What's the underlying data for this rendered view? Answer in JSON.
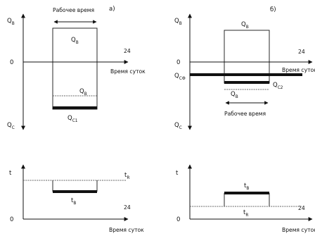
{
  "panel_a": {
    "tag": "а)",
    "qb_axis": "Q",
    "qb_axis_sub": "В",
    "qc_axis": "Q",
    "qc_axis_sub": "С",
    "zero": "0",
    "hour24": "24",
    "time_axis": "Время суток",
    "work_time": "Рабочее время",
    "qb_box": "Q",
    "qb_box_sub": "В",
    "qb_line": "Q",
    "qb_line_sub": "В",
    "qc1": "Q",
    "qc1_sub": "С1"
  },
  "panel_b": {
    "tag": "б)",
    "qb_axis": "Q",
    "qb_axis_sub": "В",
    "qc_axis": "Q",
    "qc_axis_sub": "С",
    "zero": "0",
    "hour24": "24",
    "time_axis": "Время суток",
    "work_time": "Рабочее время",
    "qb_box": "Q",
    "qb_box_sub": "В",
    "qcf": "Q",
    "qcf_sub": "СФ",
    "qb_line": "Q",
    "qb_line_sub": "В",
    "qc2": "Q",
    "qc2_sub": "С2"
  },
  "panel_c": {
    "t_axis": "t",
    "tr": "t",
    "tr_sub": "R",
    "tb": "t",
    "tb_sub": "В",
    "zero": "0",
    "hour24": "24",
    "time_axis": "Время суток"
  },
  "panel_d": {
    "t_axis": "t",
    "tb": "t",
    "tb_sub": "В",
    "tr": "t",
    "tr_sub": "R",
    "zero": "0",
    "hour24": "24",
    "time_axis": "Время суток"
  }
}
